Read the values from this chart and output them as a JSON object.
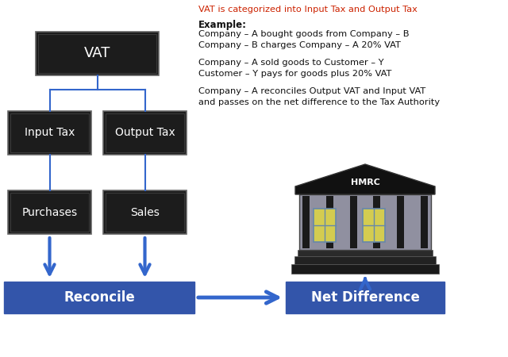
{
  "bg_color": "#ffffff",
  "dark_box_color": "#1c1c1c",
  "box_text_color": "#ffffff",
  "blue_box_color": "#3355aa",
  "blue_box_text_color": "#ffffff",
  "arrow_color": "#3366cc",
  "title_line": "VAT is categorized into Input Tax and Output Tax",
  "example_label": "Example:",
  "example_lines": [
    "Company – A bought goods from Company – B",
    "Company – B charges Company – A 20% VAT",
    "",
    "Company – A sold goods to Customer – Y",
    "Customer – Y pays for goods plus 20% VAT",
    "",
    "Company – A reconciles Output VAT and Input VAT",
    "and passes on the net difference to the Tax Authority"
  ],
  "vat_label": "VAT",
  "input_tax_label": "Input Tax",
  "output_tax_label": "Output Tax",
  "purchases_label": "Purchases",
  "sales_label": "Sales",
  "reconcile_label": "Reconcile",
  "net_diff_label": "Net Difference",
  "hmrc_label": "HMRC",
  "title_color": "#cc2200",
  "text_color": "#111111"
}
